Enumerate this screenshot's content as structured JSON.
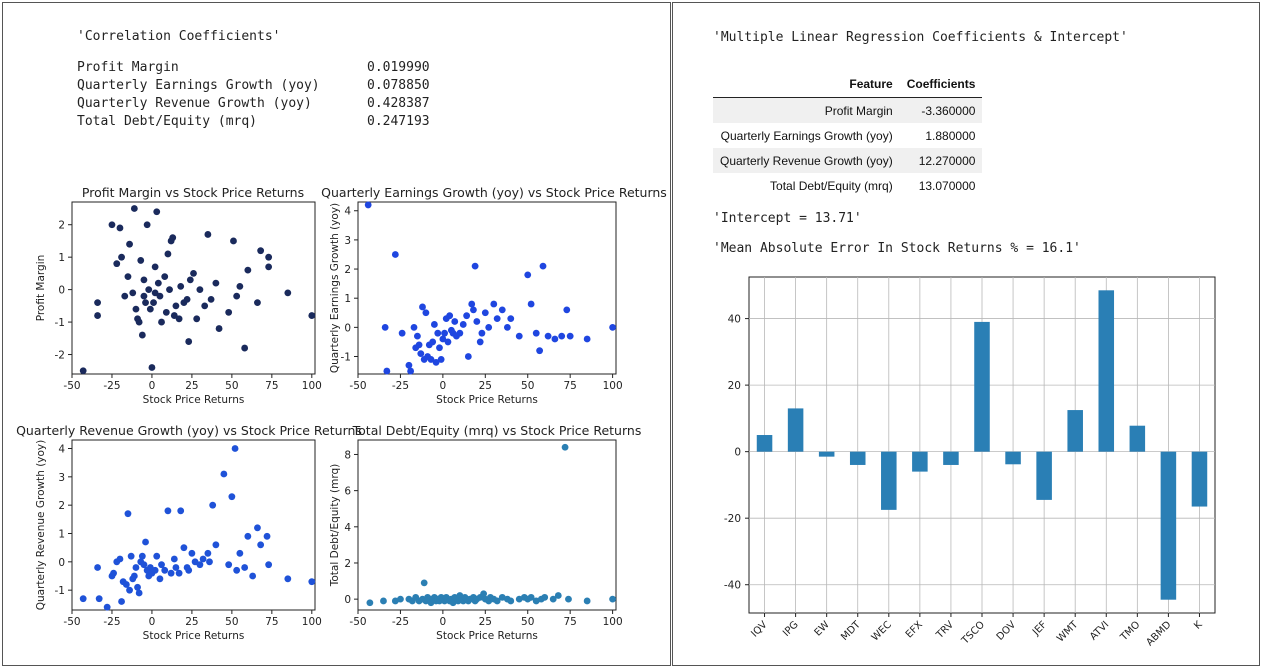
{
  "correlation": {
    "title": "'Correlation Coefficients'",
    "rows": [
      {
        "label": "Profit Margin",
        "value": "0.019990"
      },
      {
        "label": "Quarterly Earnings Growth (yoy)",
        "value": "0.078850"
      },
      {
        "label": "Quarterly Revenue Growth (yoy)",
        "value": "0.428387"
      },
      {
        "label": "Total Debt/Equity (mrq)",
        "value": "0.247193"
      }
    ]
  },
  "regression": {
    "title": "'Multiple Linear Regression Coefficients & Intercept'",
    "headers": [
      "Feature",
      "Coefficients"
    ],
    "rows": [
      {
        "feature": "Profit Margin",
        "coef": "-3.360000"
      },
      {
        "feature": "Quarterly Earnings Growth (yoy)",
        "coef": "1.880000"
      },
      {
        "feature": "Quarterly Revenue Growth (yoy)",
        "coef": "12.270000"
      },
      {
        "feature": "Total Debt/Equity (mrq)",
        "coef": "13.070000"
      }
    ],
    "intercept": "'Intercept = 13.71'",
    "mae": "'Mean Absolute Error In Stock Returns % = 16.1'"
  },
  "colors": {
    "profit": "#1a2a5c",
    "earnings": "#1f46e0",
    "revenue": "#1f52d8",
    "debt": "#2b7fb3",
    "bar": "#2a7fb5"
  },
  "chart_data": [
    {
      "type": "scatter",
      "title": "Profit Margin vs Stock Price Returns",
      "xlabel": "Stock Price Returns",
      "ylabel": "Profit Margin",
      "xlim": [
        -50,
        102
      ],
      "ylim": [
        -2.6,
        2.7
      ],
      "xticks": [
        -50,
        -25,
        0,
        25,
        50,
        75,
        100
      ],
      "yticks": [
        -2,
        -1,
        0,
        1,
        2
      ],
      "points": [
        [
          -43,
          -2.5
        ],
        [
          -34,
          -0.4
        ],
        [
          -34,
          -0.8
        ],
        [
          -25,
          2.0
        ],
        [
          -22,
          0.8
        ],
        [
          -20,
          1.9
        ],
        [
          -19,
          1.0
        ],
        [
          -17,
          -0.2
        ],
        [
          -15,
          0.4
        ],
        [
          -14,
          1.4
        ],
        [
          -11,
          2.5
        ],
        [
          -12,
          -0.1
        ],
        [
          -10,
          -0.6
        ],
        [
          -9,
          -0.9
        ],
        [
          -8,
          -1.0
        ],
        [
          -7,
          0.9
        ],
        [
          -6,
          -1.4
        ],
        [
          -5,
          0.3
        ],
        [
          -5,
          -0.2
        ],
        [
          -4,
          -0.4
        ],
        [
          -3,
          2.0
        ],
        [
          -2,
          0.0
        ],
        [
          -1,
          -0.6
        ],
        [
          0,
          -2.4
        ],
        [
          1,
          -0.4
        ],
        [
          2,
          -0.1
        ],
        [
          2,
          0.7
        ],
        [
          3,
          2.4
        ],
        [
          4,
          0.2
        ],
        [
          5,
          -0.2
        ],
        [
          6,
          -1.0
        ],
        [
          8,
          0.4
        ],
        [
          9,
          -0.7
        ],
        [
          10,
          1.1
        ],
        [
          11,
          0.0
        ],
        [
          12,
          1.5
        ],
        [
          13,
          1.6
        ],
        [
          14,
          -0.8
        ],
        [
          15,
          -0.5
        ],
        [
          17,
          -0.9
        ],
        [
          18,
          0.1
        ],
        [
          20,
          -0.4
        ],
        [
          22,
          -0.3
        ],
        [
          23,
          -1.6
        ],
        [
          24,
          0.3
        ],
        [
          26,
          0.5
        ],
        [
          28,
          -0.9
        ],
        [
          30,
          0.0
        ],
        [
          33,
          -0.5
        ],
        [
          35,
          1.7
        ],
        [
          37,
          -0.3
        ],
        [
          40,
          0.2
        ],
        [
          42,
          -1.2
        ],
        [
          48,
          -0.7
        ],
        [
          51,
          1.5
        ],
        [
          53,
          -0.2
        ],
        [
          55,
          0.1
        ],
        [
          58,
          -1.8
        ],
        [
          60,
          0.6
        ],
        [
          66,
          -0.4
        ],
        [
          68,
          1.2
        ],
        [
          73,
          0.7
        ],
        [
          73,
          1.0
        ],
        [
          85,
          -0.1
        ],
        [
          100,
          -0.8
        ]
      ]
    },
    {
      "type": "scatter",
      "title": "Quarterly Earnings Growth (yoy) vs Stock Price Returns",
      "xlabel": "Stock Price Returns",
      "ylabel": "Quarterly Earnings Growth (yoy)",
      "xlim": [
        -50,
        102
      ],
      "ylim": [
        -1.6,
        4.3
      ],
      "xticks": [
        -50,
        -25,
        0,
        25,
        50,
        75,
        100
      ],
      "yticks": [
        -1,
        0,
        1,
        2,
        3,
        4
      ],
      "points": [
        [
          -44,
          4.2
        ],
        [
          -34,
          0.0
        ],
        [
          -33,
          -1.5
        ],
        [
          -28,
          2.5
        ],
        [
          -24,
          -0.2
        ],
        [
          -20,
          -1.3
        ],
        [
          -19,
          -1.5
        ],
        [
          -17,
          0.0
        ],
        [
          -16,
          -0.7
        ],
        [
          -15,
          -0.3
        ],
        [
          -14,
          -0.6
        ],
        [
          -13,
          -0.9
        ],
        [
          -12,
          0.7
        ],
        [
          -11,
          -1.1
        ],
        [
          -10,
          0.5
        ],
        [
          -9,
          -1.0
        ],
        [
          -8,
          -0.6
        ],
        [
          -7,
          -1.1
        ],
        [
          -6,
          -0.5
        ],
        [
          -5,
          0.1
        ],
        [
          -4,
          -1.2
        ],
        [
          -3,
          -0.2
        ],
        [
          -2,
          -0.7
        ],
        [
          -1,
          -1.1
        ],
        [
          0,
          -0.4
        ],
        [
          1,
          -0.2
        ],
        [
          2,
          0.3
        ],
        [
          3,
          -0.5
        ],
        [
          4,
          0.4
        ],
        [
          5,
          -0.1
        ],
        [
          6,
          -0.2
        ],
        [
          7,
          0.2
        ],
        [
          8,
          -0.3
        ],
        [
          10,
          -0.2
        ],
        [
          12,
          0.1
        ],
        [
          14,
          0.4
        ],
        [
          15,
          -1.0
        ],
        [
          17,
          0.8
        ],
        [
          18,
          0.6
        ],
        [
          19,
          2.1
        ],
        [
          20,
          0.2
        ],
        [
          22,
          -0.5
        ],
        [
          23,
          -0.2
        ],
        [
          25,
          0.5
        ],
        [
          27,
          0.0
        ],
        [
          30,
          0.8
        ],
        [
          32,
          0.3
        ],
        [
          35,
          0.6
        ],
        [
          38,
          0.0
        ],
        [
          40,
          0.3
        ],
        [
          45,
          -0.3
        ],
        [
          50,
          1.8
        ],
        [
          52,
          0.8
        ],
        [
          55,
          -0.2
        ],
        [
          57,
          -0.8
        ],
        [
          59,
          2.1
        ],
        [
          62,
          -0.3
        ],
        [
          66,
          -0.4
        ],
        [
          70,
          -0.3
        ],
        [
          73,
          0.6
        ],
        [
          75,
          -0.3
        ],
        [
          85,
          -0.4
        ],
        [
          100,
          0.0
        ]
      ]
    },
    {
      "type": "scatter",
      "title": "Quarterly Revenue Growth (yoy) vs Stock Price Returns",
      "xlabel": "Stock Price Returns",
      "ylabel": "Quarterly Revenue Growth (yoy)",
      "xlim": [
        -50,
        102
      ],
      "ylim": [
        -1.7,
        4.3
      ],
      "xticks": [
        -50,
        -25,
        0,
        25,
        50,
        75,
        100
      ],
      "yticks": [
        -1,
        0,
        1,
        2,
        3,
        4
      ],
      "points": [
        [
          -43,
          -1.3
        ],
        [
          -34,
          -0.2
        ],
        [
          -33,
          -1.3
        ],
        [
          -28,
          -1.6
        ],
        [
          -25,
          -0.5
        ],
        [
          -24,
          -0.4
        ],
        [
          -22,
          0.0
        ],
        [
          -20,
          0.1
        ],
        [
          -19,
          -1.4
        ],
        [
          -18,
          -0.7
        ],
        [
          -16,
          -0.8
        ],
        [
          -15,
          1.7
        ],
        [
          -14,
          -1.0
        ],
        [
          -13,
          0.2
        ],
        [
          -12,
          -0.6
        ],
        [
          -11,
          -0.5
        ],
        [
          -10,
          -0.2
        ],
        [
          -9,
          -0.9
        ],
        [
          -8,
          -1.1
        ],
        [
          -7,
          0.0
        ],
        [
          -6,
          0.2
        ],
        [
          -5,
          -0.1
        ],
        [
          -4,
          0.7
        ],
        [
          -3,
          -0.3
        ],
        [
          -2,
          -0.5
        ],
        [
          -1,
          -0.2
        ],
        [
          0,
          -0.4
        ],
        [
          2,
          -0.3
        ],
        [
          3,
          0.2
        ],
        [
          5,
          -0.6
        ],
        [
          6,
          -0.1
        ],
        [
          8,
          -0.3
        ],
        [
          10,
          1.8
        ],
        [
          12,
          -0.4
        ],
        [
          14,
          0.1
        ],
        [
          15,
          -0.2
        ],
        [
          17,
          -0.4
        ],
        [
          18,
          1.8
        ],
        [
          20,
          0.5
        ],
        [
          22,
          -0.2
        ],
        [
          23,
          -0.3
        ],
        [
          25,
          0.3
        ],
        [
          27,
          0.0
        ],
        [
          30,
          -0.1
        ],
        [
          32,
          0.1
        ],
        [
          35,
          0.3
        ],
        [
          36,
          0.0
        ],
        [
          38,
          2.0
        ],
        [
          40,
          0.6
        ],
        [
          45,
          3.1
        ],
        [
          48,
          -0.1
        ],
        [
          50,
          2.3
        ],
        [
          52,
          4.0
        ],
        [
          53,
          -0.3
        ],
        [
          55,
          0.3
        ],
        [
          58,
          -0.2
        ],
        [
          60,
          0.9
        ],
        [
          63,
          -0.5
        ],
        [
          66,
          1.2
        ],
        [
          68,
          0.6
        ],
        [
          72,
          0.9
        ],
        [
          73,
          -0.1
        ],
        [
          85,
          -0.6
        ],
        [
          100,
          -0.7
        ]
      ]
    },
    {
      "type": "scatter",
      "title": "Total Debt/Equity (mrq) vs Stock Price Returns",
      "xlabel": "Stock Price Returns",
      "ylabel": "Total Debt/Equity (mrq)",
      "xlim": [
        -50,
        102
      ],
      "ylim": [
        -0.6,
        8.8
      ],
      "xticks": [
        -50,
        -25,
        0,
        25,
        50,
        75,
        100
      ],
      "yticks": [
        0,
        2,
        4,
        6,
        8
      ],
      "points": [
        [
          -43,
          -0.2
        ],
        [
          -35,
          -0.1
        ],
        [
          -28,
          -0.1
        ],
        [
          -25,
          0.0
        ],
        [
          -20,
          0.0
        ],
        [
          -18,
          -0.1
        ],
        [
          -16,
          0.1
        ],
        [
          -14,
          -0.1
        ],
        [
          -12,
          0.0
        ],
        [
          -11,
          0.9
        ],
        [
          -10,
          -0.1
        ],
        [
          -9,
          0.1
        ],
        [
          -8,
          0.0
        ],
        [
          -7,
          -0.2
        ],
        [
          -6,
          0.0
        ],
        [
          -5,
          0.1
        ],
        [
          -4,
          -0.1
        ],
        [
          -3,
          0.0
        ],
        [
          -2,
          -0.1
        ],
        [
          -1,
          0.1
        ],
        [
          0,
          0.0
        ],
        [
          1,
          -0.1
        ],
        [
          2,
          0.1
        ],
        [
          3,
          0.0
        ],
        [
          4,
          -0.1
        ],
        [
          5,
          0.0
        ],
        [
          6,
          -0.2
        ],
        [
          7,
          0.1
        ],
        [
          8,
          0.0
        ],
        [
          9,
          -0.1
        ],
        [
          10,
          0.2
        ],
        [
          11,
          0.0
        ],
        [
          12,
          -0.1
        ],
        [
          13,
          0.1
        ],
        [
          14,
          0.0
        ],
        [
          15,
          -0.1
        ],
        [
          16,
          0.0
        ],
        [
          18,
          0.1
        ],
        [
          19,
          -0.1
        ],
        [
          20,
          0.0
        ],
        [
          22,
          0.1
        ],
        [
          24,
          0.3
        ],
        [
          25,
          0.0
        ],
        [
          27,
          -0.1
        ],
        [
          28,
          0.1
        ],
        [
          30,
          0.0
        ],
        [
          32,
          -0.1
        ],
        [
          35,
          0.1
        ],
        [
          38,
          0.0
        ],
        [
          40,
          -0.1
        ],
        [
          45,
          0.0
        ],
        [
          48,
          0.1
        ],
        [
          50,
          0.0
        ],
        [
          52,
          0.1
        ],
        [
          55,
          -0.1
        ],
        [
          58,
          0.0
        ],
        [
          60,
          0.1
        ],
        [
          65,
          0.0
        ],
        [
          68,
          0.2
        ],
        [
          72,
          8.4
        ],
        [
          74,
          0.0
        ],
        [
          85,
          -0.1
        ],
        [
          100,
          0.0
        ]
      ]
    },
    {
      "type": "bar",
      "categories": [
        "IQV",
        "IPG",
        "EW",
        "MDT",
        "WEC",
        "EFX",
        "TRV",
        "TSCO",
        "DOV",
        "JEF",
        "WMT",
        "ATVI",
        "TMO",
        "ABMD",
        "K"
      ],
      "values": [
        5.0,
        13.0,
        -1.5,
        -4.0,
        -17.5,
        -6.0,
        -4.0,
        39.0,
        -3.8,
        -14.5,
        12.5,
        48.5,
        7.8,
        -44.5,
        -16.5
      ],
      "ylim": [
        -48.5,
        52.5
      ],
      "yticks": [
        -40,
        -20,
        0,
        20,
        40
      ],
      "grid": true
    }
  ]
}
